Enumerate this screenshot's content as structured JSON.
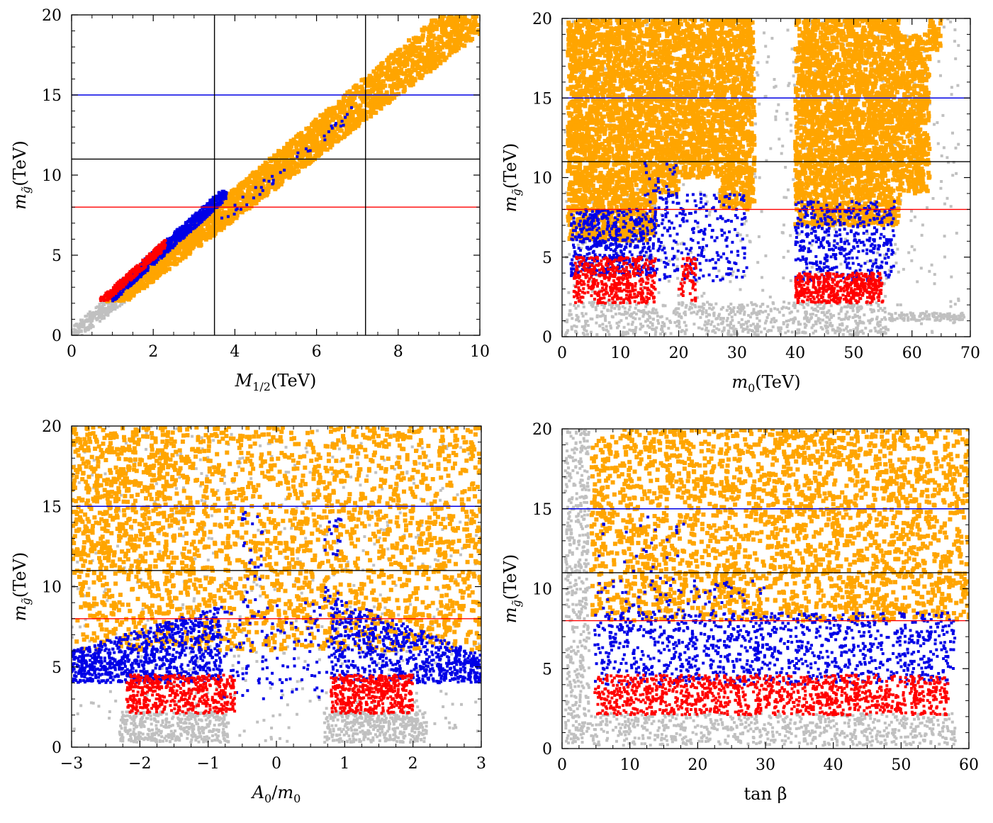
{
  "colors": {
    "orange": "#FFA500",
    "gray": "#C0C0C0",
    "blue": "#0000E6",
    "red": "#FF0000",
    "black": "#000000"
  },
  "chart_data": [
    {
      "type": "scatter",
      "id": "m12",
      "xlabel": "M_{1/2}(TeV)",
      "xlabel_main": "M",
      "xlabel_sub": "1/2",
      "xlabel_tail": "(TeV)",
      "ylabel_main": "m",
      "ylabel_sub": "g̃",
      "ylabel_tail": "(TeV)",
      "xlim": [
        0,
        10
      ],
      "ylim": [
        0,
        20
      ],
      "xticks": [
        0,
        2,
        4,
        6,
        8,
        10
      ],
      "xtick_labels": [
        "0",
        "2",
        "4",
        "6",
        "8",
        "10"
      ],
      "yticks": [
        0,
        5,
        10,
        15,
        20
      ],
      "ytick_labels": [
        "0",
        "5",
        "10",
        "15",
        "20"
      ],
      "hlines": [
        {
          "y": 15,
          "color": "blue"
        },
        {
          "y": 11,
          "color": "black"
        },
        {
          "y": 8,
          "color": "red"
        }
      ],
      "vlines": [
        {
          "x": 3.5,
          "color": "black"
        },
        {
          "x": 7.2,
          "color": "black"
        }
      ],
      "grid": false
    },
    {
      "type": "scatter",
      "id": "m0",
      "xlabel": "m_0(TeV)",
      "xlabel_main": "m",
      "xlabel_sub": "0",
      "xlabel_tail": "(TeV)",
      "ylabel_main": "m",
      "ylabel_sub": "g̃",
      "ylabel_tail": "(TeV)",
      "xlim": [
        0,
        70
      ],
      "ylim": [
        0,
        20
      ],
      "xticks": [
        0,
        10,
        20,
        30,
        40,
        50,
        60,
        70
      ],
      "xtick_labels": [
        "0",
        "10",
        "20",
        "30",
        "40",
        "50",
        "60",
        "70"
      ],
      "yticks": [
        0,
        5,
        10,
        15,
        20
      ],
      "ytick_labels": [
        "0",
        "5",
        "10",
        "15",
        "20"
      ],
      "hlines": [
        {
          "y": 15,
          "color": "blue"
        },
        {
          "y": 11,
          "color": "black"
        },
        {
          "y": 8,
          "color": "red"
        }
      ],
      "vlines": [],
      "grid": false
    },
    {
      "type": "scatter",
      "id": "a0",
      "xlabel": "A_0/m_0",
      "xlabel_main": "A",
      "xlabel_sub": "0",
      "xlabel_tail": "/m",
      "xlabel_sub2": "0",
      "ylabel_main": "m",
      "ylabel_sub": "g̃",
      "ylabel_tail": "(TeV)",
      "xlim": [
        -3,
        3
      ],
      "ylim": [
        0,
        20
      ],
      "xticks": [
        -3,
        -2,
        -1,
        0,
        1,
        2,
        3
      ],
      "xtick_labels": [
        "−3",
        "−2",
        "−1",
        "0",
        "1",
        "2",
        "3"
      ],
      "yticks": [
        0,
        5,
        10,
        15,
        20
      ],
      "ytick_labels": [
        "0",
        "5",
        "10",
        "15",
        "20"
      ],
      "hlines": [
        {
          "y": 15,
          "color": "blue"
        },
        {
          "y": 11,
          "color": "black"
        },
        {
          "y": 8,
          "color": "red"
        }
      ],
      "vlines": [],
      "grid": false
    },
    {
      "type": "scatter",
      "id": "tanb",
      "xlabel": "tan β",
      "xlabel_main": "tan β",
      "xlabel_sub": "",
      "xlabel_tail": "",
      "ylabel_main": "m",
      "ylabel_sub": "g̃",
      "ylabel_tail": "(TeV)",
      "xlim": [
        0,
        60
      ],
      "ylim": [
        0,
        20
      ],
      "xticks": [
        0,
        10,
        20,
        30,
        40,
        50,
        60
      ],
      "xtick_labels": [
        "0",
        "10",
        "20",
        "30",
        "40",
        "50",
        "60"
      ],
      "yticks": [
        0,
        5,
        10,
        15,
        20
      ],
      "ytick_labels": [
        "0",
        "5",
        "10",
        "15",
        "20"
      ],
      "hlines": [
        {
          "y": 15,
          "color": "blue"
        },
        {
          "y": 11,
          "color": "black"
        },
        {
          "y": 8,
          "color": "red"
        }
      ],
      "vlines": [],
      "grid": false
    }
  ]
}
